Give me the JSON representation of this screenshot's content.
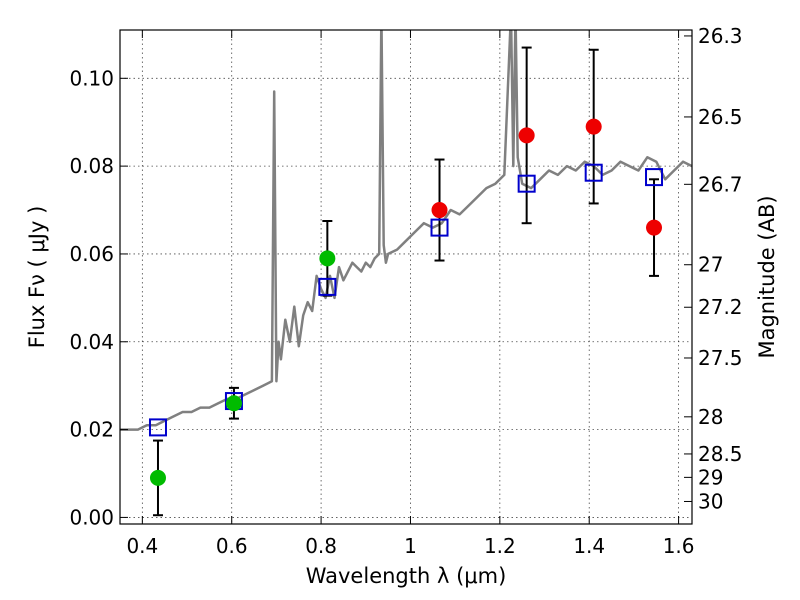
{
  "chart_data": {
    "type": "scatter",
    "xlabel": "Wavelength  λ (μm)",
    "ylabel": "Flux  Fν  ( μJy )",
    "ylabel_right": "Magnitude (AB)",
    "xlim": [
      0.35,
      1.63
    ],
    "ylim": [
      -0.0015,
      0.111
    ],
    "x_ticks": [
      0.4,
      0.6,
      0.8,
      1.0,
      1.2,
      1.4,
      1.6
    ],
    "x_tick_labels": [
      "0.4",
      "0.6",
      "0.8",
      "1",
      "1.2",
      "1.4",
      "1.6"
    ],
    "y_ticks": [
      0.0,
      0.02,
      0.04,
      0.06,
      0.08,
      0.1
    ],
    "y_tick_labels": [
      "0.00",
      "0.02",
      "0.04",
      "0.06",
      "0.08",
      "0.10"
    ],
    "right_ticks": [
      26.3,
      26.5,
      26.7,
      27,
      27.2,
      27.5,
      28,
      28.5,
      29,
      30
    ],
    "right_tick_labels": [
      "26.3",
      "26.5",
      "26.7",
      "27",
      "27.2",
      "27.5",
      "28",
      "28.5",
      "29",
      "30"
    ],
    "grid": true,
    "colors": {
      "spectrum": "#808080",
      "optical_points": "#00bb00",
      "nir_points": "#ee0000",
      "model_squares": "#0000cc",
      "error_bars": "#000000"
    },
    "spectrum": {
      "x": [
        0.35,
        0.37,
        0.39,
        0.41,
        0.43,
        0.45,
        0.47,
        0.49,
        0.51,
        0.53,
        0.55,
        0.57,
        0.59,
        0.61,
        0.63,
        0.65,
        0.67,
        0.69,
        0.695,
        0.7,
        0.705,
        0.71,
        0.72,
        0.73,
        0.74,
        0.75,
        0.76,
        0.77,
        0.78,
        0.79,
        0.8,
        0.81,
        0.82,
        0.83,
        0.84,
        0.85,
        0.86,
        0.87,
        0.88,
        0.89,
        0.9,
        0.91,
        0.92,
        0.93,
        0.935,
        0.94,
        0.945,
        0.95,
        0.97,
        0.99,
        1.01,
        1.03,
        1.05,
        1.07,
        1.09,
        1.11,
        1.13,
        1.15,
        1.17,
        1.19,
        1.21,
        1.225,
        1.23,
        1.235,
        1.24,
        1.25,
        1.27,
        1.29,
        1.31,
        1.33,
        1.35,
        1.37,
        1.39,
        1.41,
        1.43,
        1.45,
        1.47,
        1.49,
        1.51,
        1.53,
        1.55,
        1.57,
        1.59,
        1.61,
        1.63
      ],
      "y": [
        0.02,
        0.02,
        0.02,
        0.021,
        0.021,
        0.022,
        0.023,
        0.024,
        0.024,
        0.025,
        0.025,
        0.026,
        0.027,
        0.027,
        0.028,
        0.029,
        0.03,
        0.031,
        0.097,
        0.031,
        0.04,
        0.036,
        0.045,
        0.04,
        0.048,
        0.039,
        0.046,
        0.049,
        0.047,
        0.055,
        0.052,
        0.05,
        0.055,
        0.05,
        0.057,
        0.054,
        0.056,
        0.058,
        0.057,
        0.056,
        0.058,
        0.057,
        0.059,
        0.06,
        0.115,
        0.062,
        0.058,
        0.06,
        0.061,
        0.063,
        0.065,
        0.067,
        0.066,
        0.067,
        0.07,
        0.069,
        0.071,
        0.073,
        0.075,
        0.076,
        0.078,
        0.115,
        0.08,
        0.115,
        0.082,
        0.076,
        0.075,
        0.077,
        0.079,
        0.078,
        0.08,
        0.079,
        0.081,
        0.08,
        0.078,
        0.079,
        0.081,
        0.08,
        0.079,
        0.082,
        0.081,
        0.077,
        0.079,
        0.081,
        0.08
      ]
    },
    "photometry": [
      {
        "x": 0.435,
        "y": 0.009,
        "err": 0.0085,
        "band": "optical"
      },
      {
        "x": 0.605,
        "y": 0.026,
        "err": 0.0035,
        "band": "optical"
      },
      {
        "x": 0.814,
        "y": 0.059,
        "err": 0.0085,
        "band": "optical"
      },
      {
        "x": 1.065,
        "y": 0.07,
        "err": 0.0115,
        "band": "nir"
      },
      {
        "x": 1.26,
        "y": 0.087,
        "err": 0.02,
        "band": "nir"
      },
      {
        "x": 1.41,
        "y": 0.089,
        "err": 0.0175,
        "band": "nir"
      },
      {
        "x": 1.545,
        "y": 0.066,
        "err": 0.011,
        "band": "nir"
      }
    ],
    "model_points": [
      {
        "x": 0.435,
        "y": 0.0205
      },
      {
        "x": 0.605,
        "y": 0.0265
      },
      {
        "x": 0.814,
        "y": 0.0525
      },
      {
        "x": 1.065,
        "y": 0.066
      },
      {
        "x": 1.26,
        "y": 0.076
      },
      {
        "x": 1.41,
        "y": 0.0785
      },
      {
        "x": 1.545,
        "y": 0.0775
      }
    ]
  }
}
